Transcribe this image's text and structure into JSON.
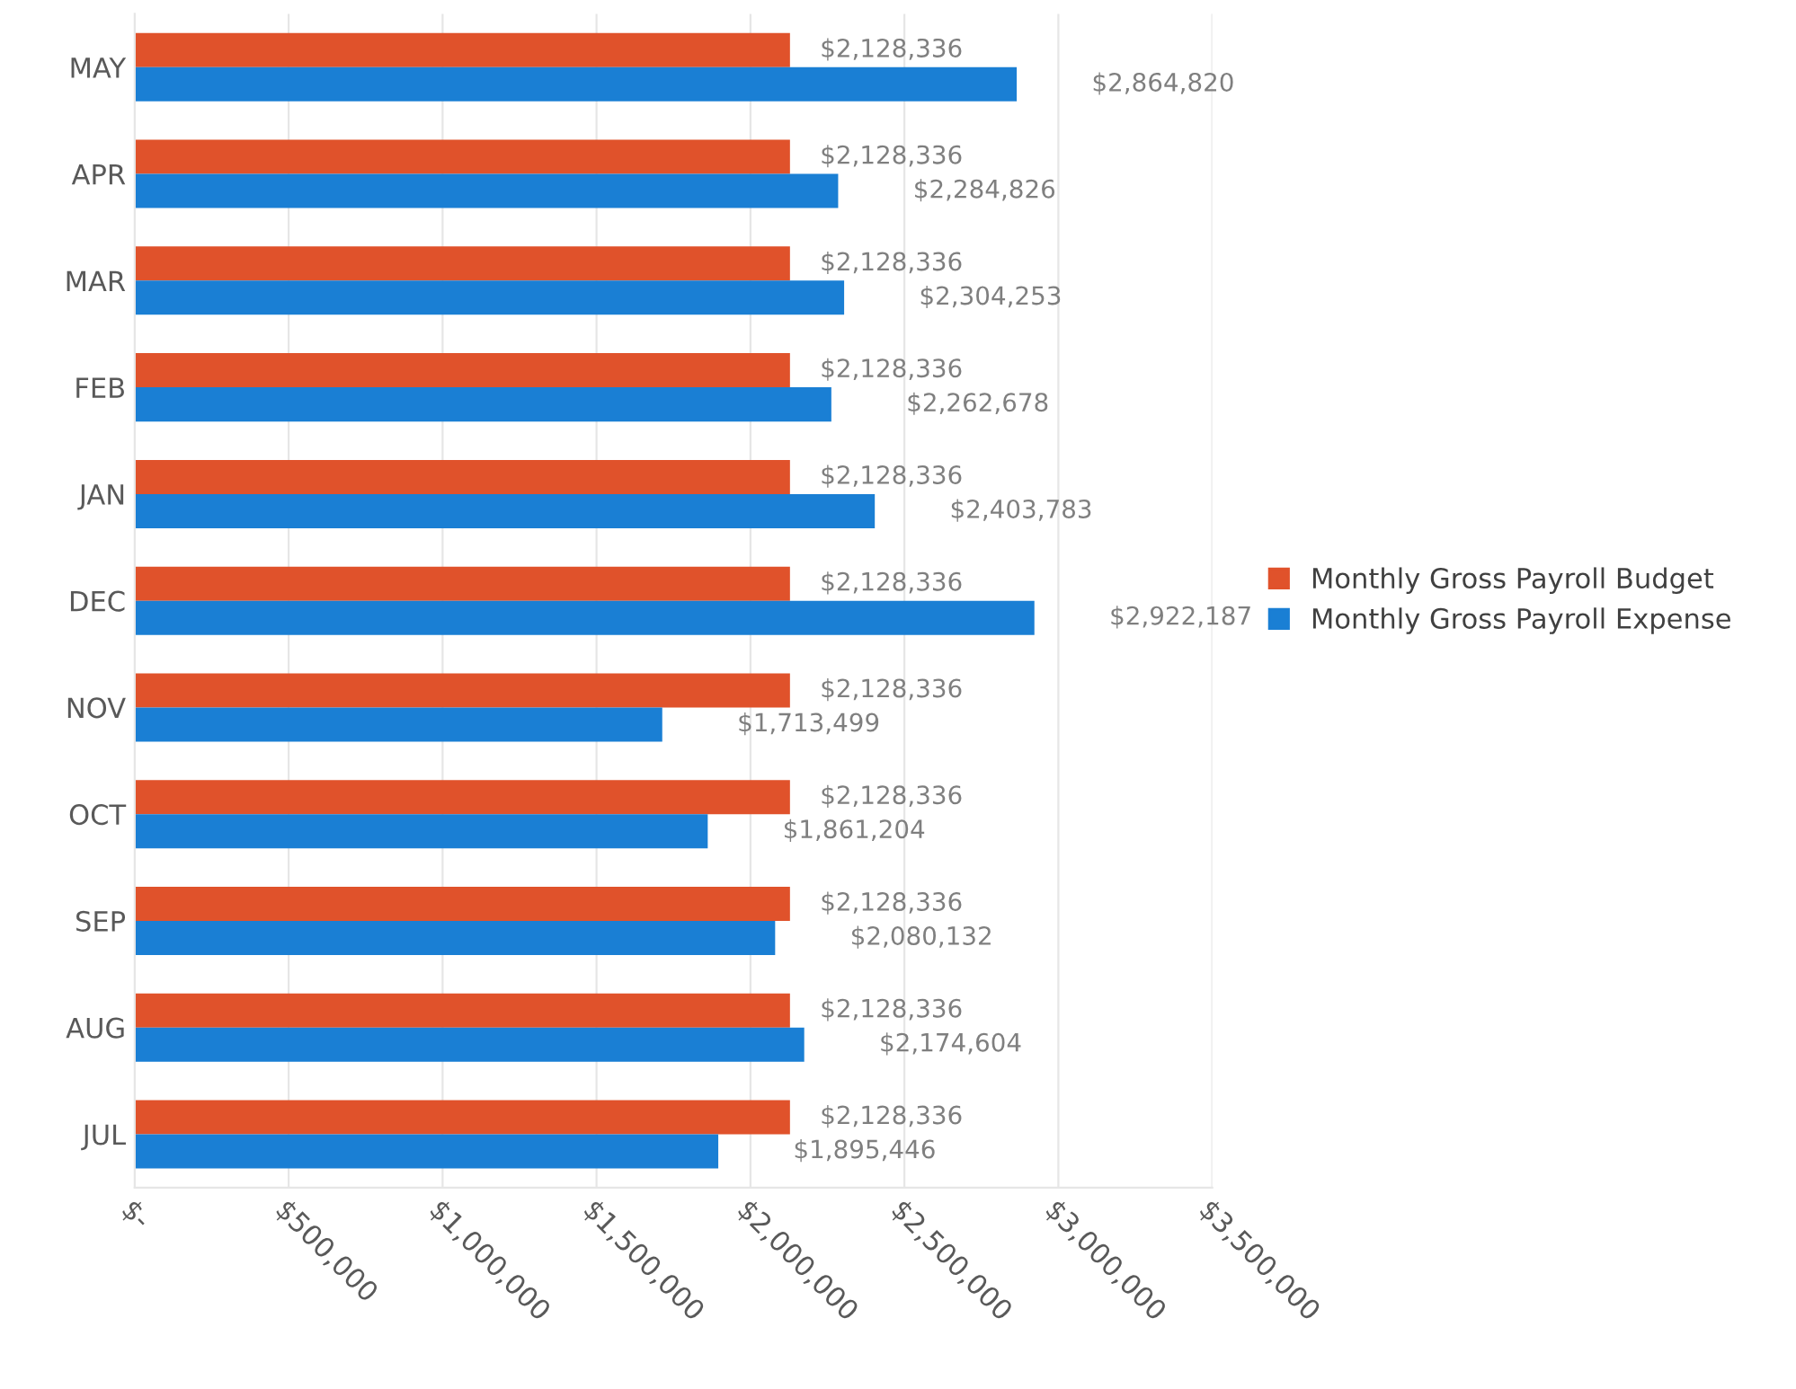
{
  "chart_data": {
    "type": "bar",
    "orientation": "horizontal",
    "categories": [
      "MAY",
      "APR",
      "MAR",
      "FEB",
      "JAN",
      "DEC",
      "NOV",
      "OCT",
      "SEP",
      "AUG",
      "JUL"
    ],
    "series": [
      {
        "name": "Monthly Gross Payroll Budget",
        "color": "#e0522b",
        "values": [
          2128336,
          2128336,
          2128336,
          2128336,
          2128336,
          2128336,
          2128336,
          2128336,
          2128336,
          2128336,
          2128336
        ],
        "value_labels": [
          "$2,128,336",
          "$2,128,336",
          "$2,128,336",
          "$2,128,336",
          "$2,128,336",
          "$2,128,336",
          "$2,128,336",
          "$2,128,336",
          "$2,128,336",
          "$2,128,336",
          "$2,128,336"
        ]
      },
      {
        "name": "Monthly Gross Payroll Expense",
        "color": "#1a7fd4",
        "values": [
          2864820,
          2284826,
          2304253,
          2262678,
          2403783,
          2922187,
          1713499,
          1861204,
          2080132,
          2174604,
          1895446
        ],
        "value_labels": [
          "$2,864,820",
          "$2,284,826",
          "$2,304,253",
          "$2,262,678",
          "$2,403,783",
          "$2,922,187",
          "$1,713,499",
          "$1,861,204",
          "$2,080,132",
          "$2,174,604",
          "$1,895,446"
        ]
      }
    ],
    "xlim": [
      0,
      3500000
    ],
    "xticks": [
      {
        "value": 0,
        "label": "$-"
      },
      {
        "value": 500000,
        "label": "$500,000"
      },
      {
        "value": 1000000,
        "label": "$1,000,000"
      },
      {
        "value": 1500000,
        "label": "$1,500,000"
      },
      {
        "value": 2000000,
        "label": "$2,000,000"
      },
      {
        "value": 2500000,
        "label": "$2,500,000"
      },
      {
        "value": 3000000,
        "label": "$3,000,000"
      },
      {
        "value": 3500000,
        "label": "$3,500,000"
      }
    ],
    "grid": "x",
    "legend": "right"
  }
}
